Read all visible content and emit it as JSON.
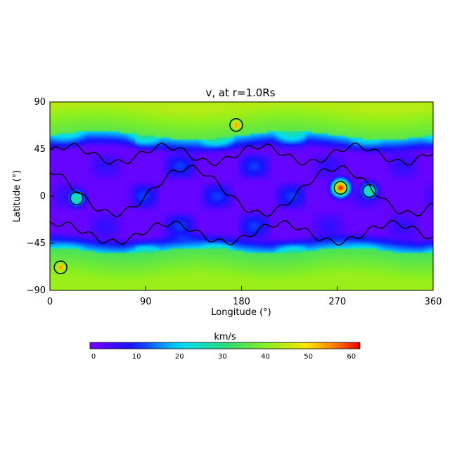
{
  "chart_data": {
    "type": "heatmap",
    "title": "v, at r=1.0Rs",
    "xlabel": "Longitude (°)",
    "ylabel": "Latitude (°)",
    "xlim": [
      0,
      360
    ],
    "ylim": [
      -90,
      90
    ],
    "x_ticks": [
      "0",
      "90",
      "180",
      "270",
      "360"
    ],
    "y_ticks": [
      "90",
      "45",
      "0",
      "-45",
      "-90"
    ],
    "colorbar": {
      "label": "km/s",
      "range": [
        0,
        62
      ],
      "ticks": [
        "0",
        "10",
        "20",
        "30",
        "40",
        "50",
        "60"
      ]
    },
    "field_description": "solar wind speed map: fast (~35-45 km/s) at high latitudes |lat|>60, slow (~0-5 km/s) band between about -50 and 55 lat, with patches of 10-30 km/s; hotspot ~62 km/s near lon 273 lat 8",
    "features": [
      {
        "lon": 273,
        "lat": 8,
        "value": 62
      },
      {
        "lon": 300,
        "lat": 5,
        "value": 30
      },
      {
        "lon": 25,
        "lat": -2,
        "value": 30
      },
      {
        "lon": 175,
        "lat": 68,
        "value": 55
      },
      {
        "lon": 10,
        "lat": -68,
        "value": 55
      }
    ],
    "contour_color": "#000000"
  }
}
